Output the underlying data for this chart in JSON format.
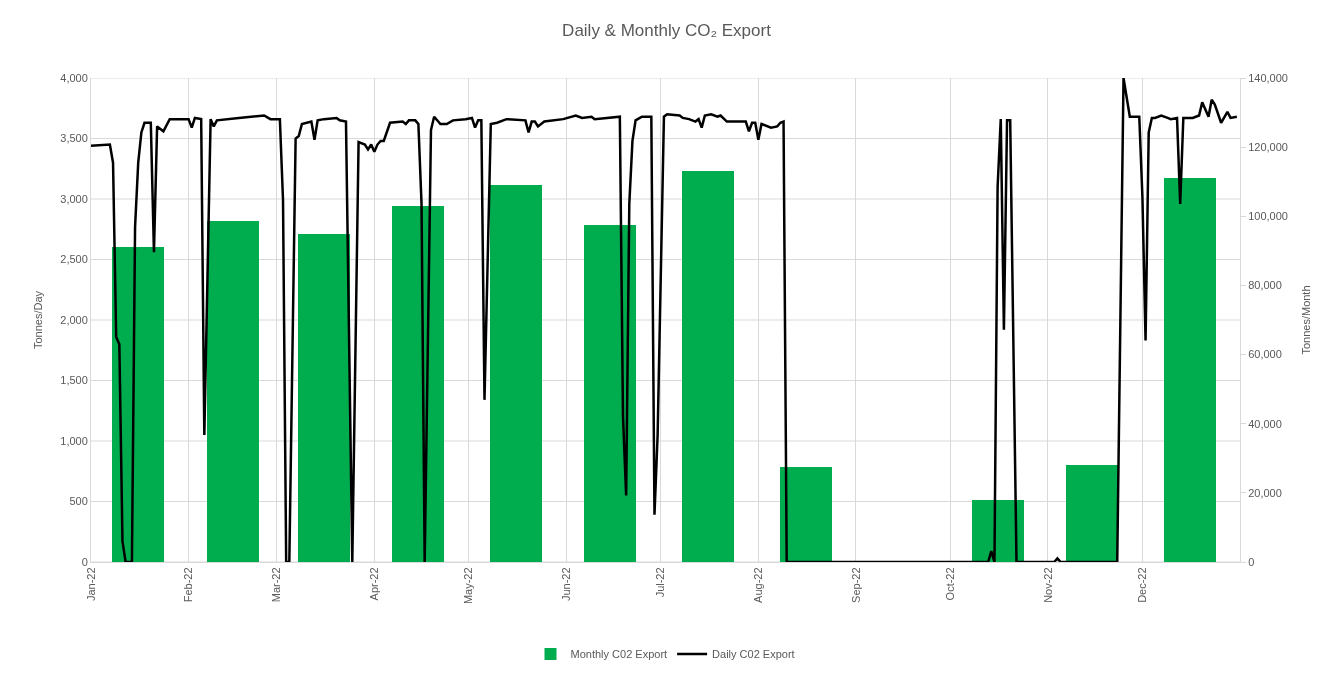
{
  "chart_data": {
    "type": "bar",
    "title": "Daily & Monthly CO₂ Export",
    "ylabel": "Tonnes/Day",
    "y2label": "Tonnes/Month",
    "xlim": [
      "2022-01-01",
      "2023-01-01"
    ],
    "xticks": [
      {
        "value": "2022-01-01",
        "label": "Jan-22"
      },
      {
        "value": "2022-02-01",
        "label": "Feb-22"
      },
      {
        "value": "2022-03-01",
        "label": "Mar-22"
      },
      {
        "value": "2022-04-01",
        "label": "Apr-22"
      },
      {
        "value": "2022-05-01",
        "label": "May-22"
      },
      {
        "value": "2022-06-01",
        "label": "Jun-22"
      },
      {
        "value": "2022-07-01",
        "label": "Jul-22"
      },
      {
        "value": "2022-08-01",
        "label": "Aug-22"
      },
      {
        "value": "2022-09-01",
        "label": "Sep-22"
      },
      {
        "value": "2022-10-01",
        "label": "Oct-22"
      },
      {
        "value": "2022-11-01",
        "label": "Nov-22"
      },
      {
        "value": "2022-12-01",
        "label": "Dec-22"
      }
    ],
    "ylim": [
      0,
      4000
    ],
    "yticks": [
      0,
      500,
      {
        "value": 1000,
        "label": "1,000"
      },
      {
        "value": 1500,
        "label": "1,500"
      },
      {
        "value": 2000,
        "label": "2,000"
      },
      {
        "value": 2500,
        "label": "2,500"
      },
      {
        "value": 3000,
        "label": "3,000"
      },
      {
        "value": 3500,
        "label": "3,500"
      },
      {
        "value": 4000,
        "label": "4,000"
      }
    ],
    "y2lim": [
      0,
      140000
    ],
    "y2ticks": [
      0,
      {
        "value": 20000,
        "label": "20,000"
      },
      {
        "value": 40000,
        "label": "40,000"
      },
      {
        "value": 60000,
        "label": "60,000"
      },
      {
        "value": 80000,
        "label": "80,000"
      },
      {
        "value": 100000,
        "label": "100,000"
      },
      {
        "value": 120000,
        "label": "120,000"
      },
      {
        "value": 140000,
        "label": "140,000"
      }
    ],
    "grid": true,
    "legend": "bottom",
    "series": [
      {
        "name": "Monthly C02 Export",
        "axis": "y2",
        "color": "#00ad4e",
        "x": [
          "2022-01-16",
          "2022-02-15",
          "2022-03-16",
          "2022-04-15",
          "2022-05-16",
          "2022-06-15",
          "2022-07-16",
          "2022-08-16",
          "2022-09-15",
          "2022-10-16",
          "2022-11-15",
          "2022-12-16"
        ],
        "values": [
          91000,
          98500,
          95000,
          103000,
          109000,
          97500,
          113000,
          27500,
          0,
          18000,
          28000,
          111000
        ]
      },
      {
        "name": "Daily C02 Export",
        "type": "line",
        "color": "#000000",
        "line_style": "solid",
        "marker": "none",
        "x": [
          "2022-01-01",
          "2022-01-07",
          "2022-01-08",
          "2022-01-09",
          "2022-01-10",
          "2022-01-11",
          "2022-01-12",
          "2022-01-14",
          "2022-01-15",
          "2022-01-16",
          "2022-01-17",
          "2022-01-18",
          "2022-01-20",
          "2022-01-21",
          "2022-01-22",
          "2022-01-24",
          "2022-01-26",
          "2022-02-01",
          "2022-02-02",
          "2022-02-03",
          "2022-02-05",
          "2022-02-06",
          "2022-02-08",
          "2022-02-09",
          "2022-02-10",
          "2022-02-17",
          "2022-02-25",
          "2022-02-27",
          "2022-03-02",
          "2022-03-03",
          "2022-03-04",
          "2022-03-05",
          "2022-03-07",
          "2022-03-08",
          "2022-03-09",
          "2022-03-12",
          "2022-03-13",
          "2022-03-14",
          "2022-03-16",
          "2022-03-20",
          "2022-03-21",
          "2022-03-23",
          "2022-03-25",
          "2022-03-27",
          "2022-03-29",
          "2022-03-30",
          "2022-03-31",
          "2022-04-01",
          "2022-04-02",
          "2022-04-03",
          "2022-04-04",
          "2022-04-06",
          "2022-04-10",
          "2022-04-11",
          "2022-04-12",
          "2022-04-14",
          "2022-04-15",
          "2022-04-16",
          "2022-04-17",
          "2022-04-19",
          "2022-04-20",
          "2022-04-22",
          "2022-04-24",
          "2022-04-26",
          "2022-04-30",
          "2022-05-02",
          "2022-05-03",
          "2022-05-04",
          "2022-05-05",
          "2022-05-06",
          "2022-05-08",
          "2022-05-10",
          "2022-05-13",
          "2022-05-19",
          "2022-05-20",
          "2022-05-21",
          "2022-05-22",
          "2022-05-23",
          "2022-05-25",
          "2022-05-31",
          "2022-06-04",
          "2022-06-06",
          "2022-06-09",
          "2022-06-10",
          "2022-06-18",
          "2022-06-19",
          "2022-06-20",
          "2022-06-21",
          "2022-06-22",
          "2022-06-23",
          "2022-06-25",
          "2022-06-28",
          "2022-06-29",
          "2022-06-30",
          "2022-07-02",
          "2022-07-03",
          "2022-07-07",
          "2022-07-08",
          "2022-07-10",
          "2022-07-12",
          "2022-07-13",
          "2022-07-14",
          "2022-07-15",
          "2022-07-17",
          "2022-07-19",
          "2022-07-20",
          "2022-07-22",
          "2022-07-28",
          "2022-07-29",
          "2022-07-30",
          "2022-07-31",
          "2022-08-01",
          "2022-08-02",
          "2022-08-05",
          "2022-08-07",
          "2022-08-08",
          "2022-08-09",
          "2022-08-10",
          "2022-10-13",
          "2022-10-14",
          "2022-10-15",
          "2022-10-16",
          "2022-10-17",
          "2022-10-18",
          "2022-10-19",
          "2022-10-20",
          "2022-10-22",
          "2022-11-03",
          "2022-11-04",
          "2022-11-05",
          "2022-11-23",
          "2022-11-25",
          "2022-11-27",
          "2022-11-30",
          "2022-12-01",
          "2022-12-02",
          "2022-12-03",
          "2022-12-04",
          "2022-12-05",
          "2022-12-07",
          "2022-12-09",
          "2022-12-10",
          "2022-12-12",
          "2022-12-13",
          "2022-12-14",
          "2022-12-17",
          "2022-12-19",
          "2022-12-20",
          "2022-12-22",
          "2022-12-23",
          "2022-12-24",
          "2022-12-26",
          "2022-12-28",
          "2022-12-29",
          "2022-12-31"
        ],
        "values": [
          3440,
          3450,
          3300,
          1860,
          1800,
          170,
          0,
          0,
          2770,
          3300,
          3550,
          3630,
          3630,
          2560,
          3600,
          3560,
          3660,
          3660,
          3590,
          3670,
          3660,
          1050,
          3660,
          3600,
          3650,
          3670,
          3690,
          3660,
          3660,
          2990,
          0,
          0,
          3500,
          3520,
          3620,
          3640,
          3490,
          3650,
          3660,
          3670,
          3650,
          3640,
          0,
          3470,
          3450,
          3410,
          3450,
          3390,
          3450,
          3480,
          3480,
          3630,
          3640,
          3620,
          3650,
          3650,
          3620,
          2960,
          0,
          3570,
          3680,
          3620,
          3620,
          3650,
          3660,
          3670,
          3590,
          3650,
          3650,
          1340,
          3620,
          3630,
          3660,
          3650,
          3550,
          3640,
          3640,
          3600,
          3640,
          3660,
          3690,
          3670,
          3680,
          3660,
          3680,
          1200,
          550,
          2960,
          3480,
          3650,
          3680,
          3680,
          390,
          1050,
          3680,
          3700,
          3690,
          3670,
          3660,
          3640,
          3660,
          3590,
          3690,
          3700,
          3680,
          3690,
          3640,
          3640,
          3560,
          3630,
          3630,
          3490,
          3620,
          3590,
          3600,
          3630,
          3640,
          0,
          0,
          90,
          0,
          3100,
          3660,
          1920,
          3650,
          3650,
          0,
          0,
          30,
          0,
          0,
          4000,
          3680,
          3680,
          3020,
          1830,
          3550,
          3670,
          3670,
          3690,
          3670,
          3660,
          3670,
          2960,
          3670,
          3670,
          3690,
          3800,
          3680,
          3820,
          3780,
          3630,
          3720,
          3670,
          3680
        ]
      }
    ]
  }
}
